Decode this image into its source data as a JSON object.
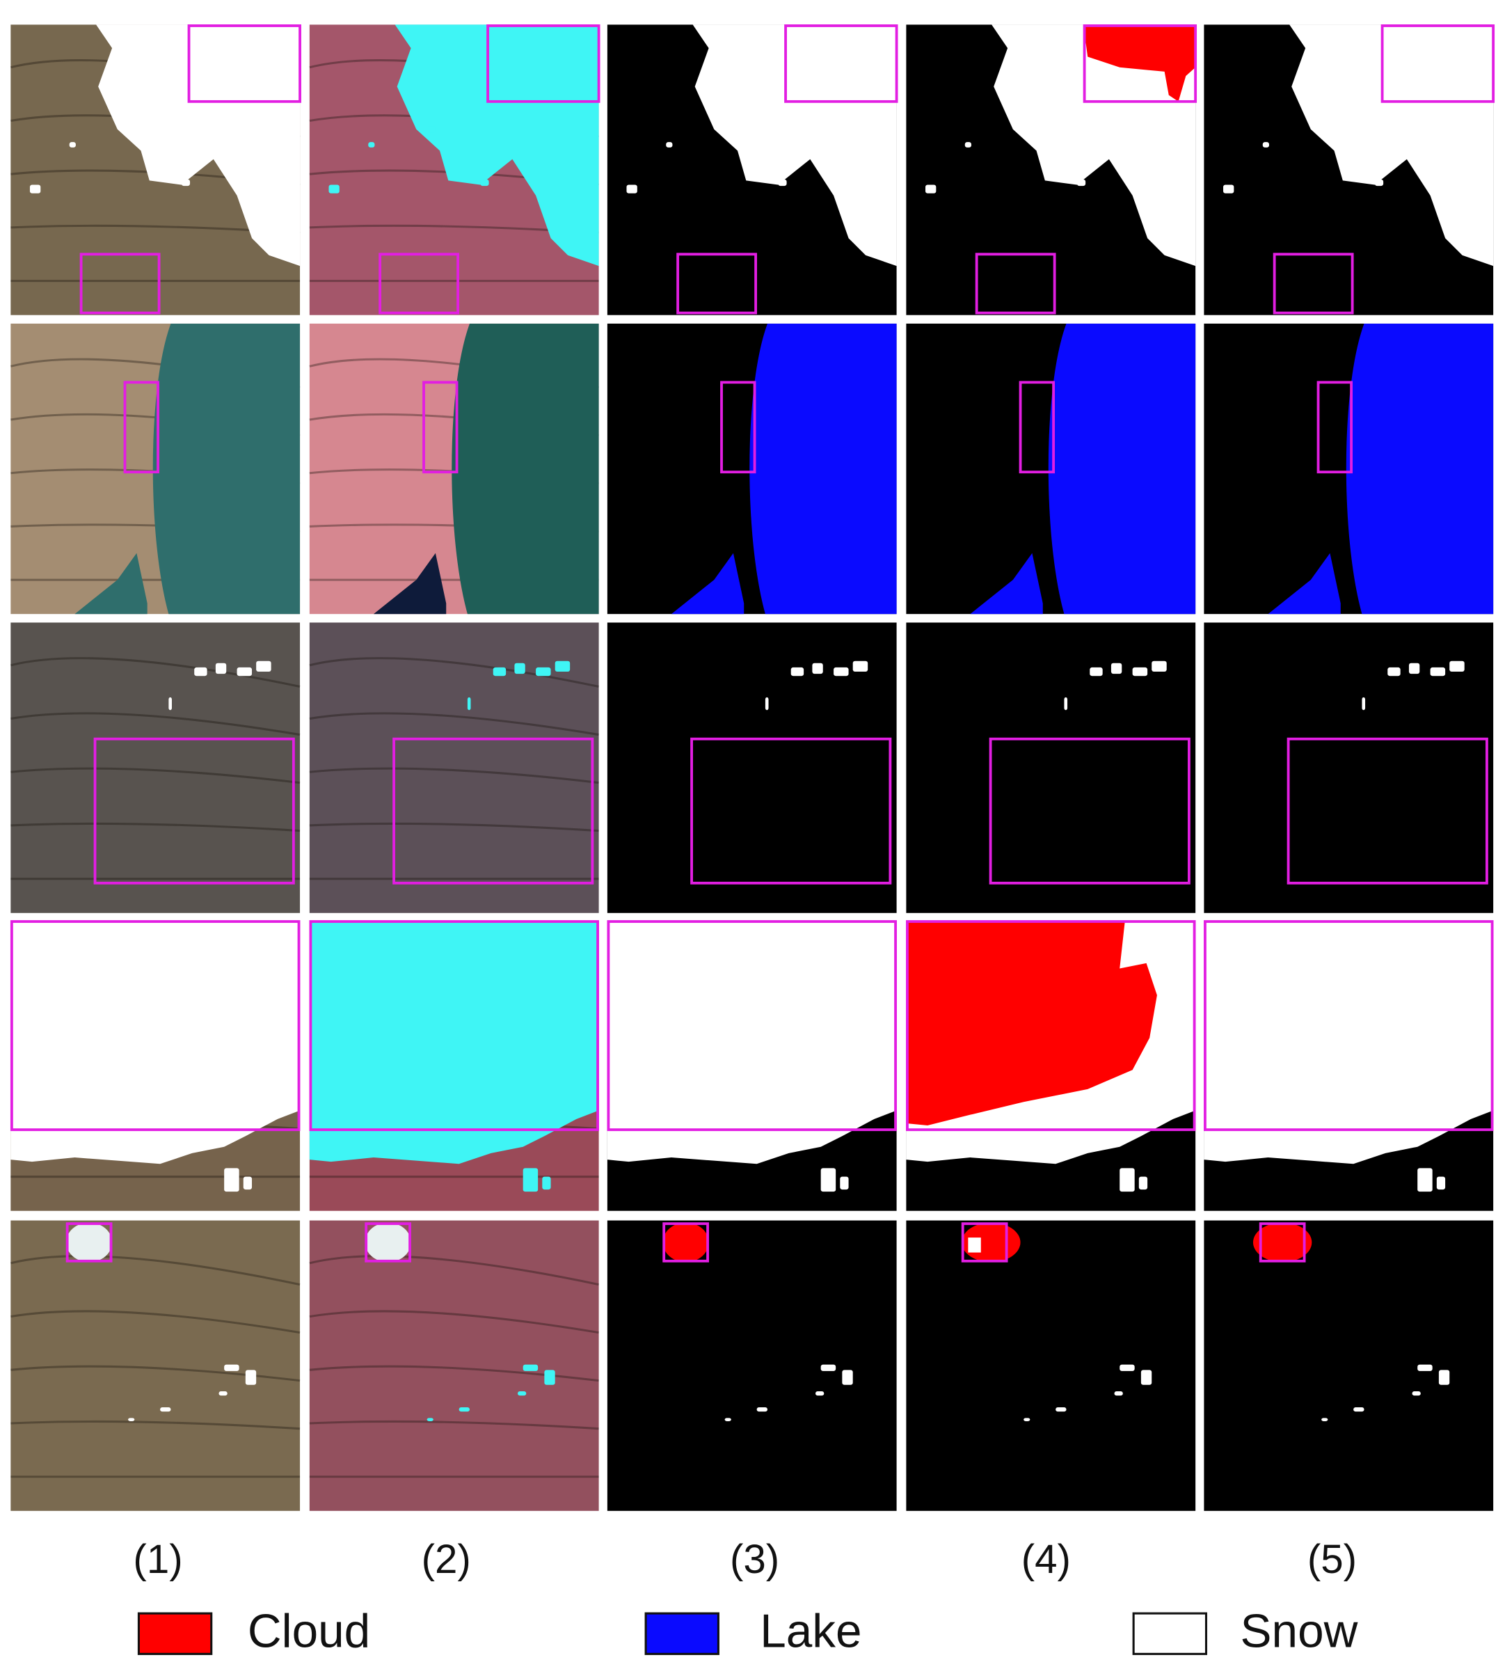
{
  "columns": [
    "(1)",
    "(2)",
    "(3)",
    "(4)",
    "(5)"
  ],
  "legend": [
    {
      "label": "Cloud",
      "color": "#ff0000"
    },
    {
      "label": "Lake",
      "color": "#0a0aff"
    },
    {
      "label": "Snow",
      "color": "#ffffff"
    }
  ]
}
